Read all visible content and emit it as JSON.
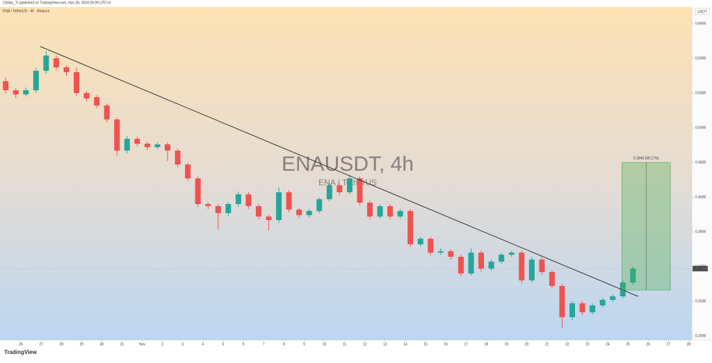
{
  "header": {
    "publisher": "Chillax_Tr published on TradingView.com, Nov 26, 2024 09:39 UTC+3",
    "symbol": "ENA / TetherUS · 4h · Binance",
    "currency": "USDT"
  },
  "footer": {
    "brand": "TradingView"
  },
  "chart_data": {
    "type": "candlestick",
    "title": "ENAUSDT, 4h",
    "subtitle": "ENA / TetherUS",
    "colors": {
      "up": "#26a69a",
      "down": "#ef5350"
    },
    "xlim": [
      -1.031,
      33.16
    ],
    "ylim": [
      0.194,
      0.672
    ],
    "xticks": [
      {
        "value": 0,
        "label": "26"
      },
      {
        "value": 1,
        "label": "27"
      },
      {
        "value": 2,
        "label": "28"
      },
      {
        "value": 3,
        "label": "29"
      },
      {
        "value": 4,
        "label": "30"
      },
      {
        "value": 5,
        "label": "31"
      },
      {
        "value": 6,
        "label": "Nov"
      },
      {
        "value": 7,
        "label": "2"
      },
      {
        "value": 8,
        "label": "3"
      },
      {
        "value": 9,
        "label": "4"
      },
      {
        "value": 10,
        "label": "5"
      },
      {
        "value": 11,
        "label": "6"
      },
      {
        "value": 12,
        "label": "7"
      },
      {
        "value": 13,
        "label": "8"
      },
      {
        "value": 14,
        "label": "9"
      },
      {
        "value": 15,
        "label": "10"
      },
      {
        "value": 16,
        "label": "11"
      },
      {
        "value": 17,
        "label": "12"
      },
      {
        "value": 18,
        "label": "13"
      },
      {
        "value": 19,
        "label": "14"
      },
      {
        "value": 20,
        "label": "15"
      },
      {
        "value": 21,
        "label": "16"
      },
      {
        "value": 22,
        "label": "17"
      },
      {
        "value": 23,
        "label": "18"
      },
      {
        "value": 24,
        "label": "19"
      },
      {
        "value": 25,
        "label": "20"
      },
      {
        "value": 26,
        "label": "21"
      },
      {
        "value": 27,
        "label": "22"
      },
      {
        "value": 28,
        "label": "23"
      },
      {
        "value": 29,
        "label": "24"
      },
      {
        "value": 30,
        "label": "25"
      },
      {
        "value": 31,
        "label": "26"
      },
      {
        "value": 32,
        "label": "27"
      },
      {
        "value": 33,
        "label": "28"
      }
    ],
    "yticks": [
      {
        "value": 0.2,
        "label": "0.2000"
      },
      {
        "value": 0.25,
        "label": "0.2500"
      },
      {
        "value": 0.3,
        "label": "0.3000"
      },
      {
        "value": 0.35,
        "label": "0.3500"
      },
      {
        "value": 0.4,
        "label": "0.4000"
      },
      {
        "value": 0.45,
        "label": "0.4500"
      },
      {
        "value": 0.5,
        "label": "0.5000"
      },
      {
        "value": 0.55,
        "label": "0.5500"
      },
      {
        "value": 0.6,
        "label": "0.6000"
      },
      {
        "value": 0.65,
        "label": "0.6500"
      }
    ],
    "x": [
      -0.75,
      -0.25,
      0.25,
      0.75,
      1.25,
      1.75,
      2.25,
      2.75,
      3.25,
      3.75,
      4.25,
      4.75,
      5.25,
      5.75,
      6.25,
      6.75,
      7.25,
      7.75,
      8.25,
      8.75,
      9.25,
      9.75,
      10.25,
      10.75,
      11.25,
      11.75,
      12.25,
      12.75,
      13.25,
      13.75,
      14.25,
      14.75,
      15.25,
      15.75,
      16.25,
      16.75,
      17.25,
      17.75,
      18.25,
      18.75,
      19.25,
      19.75,
      20.25,
      20.75,
      21.25,
      21.75,
      22.25,
      22.75,
      23.25,
      23.75,
      24.25,
      24.75,
      25.25,
      25.75,
      26.25,
      26.75,
      27.25,
      27.75,
      28.25,
      28.75,
      29.25,
      29.75,
      30.25
    ],
    "open": [
      0.567,
      0.554,
      0.548,
      0.554,
      0.582,
      0.6,
      0.587,
      0.58,
      0.55,
      0.544,
      0.532,
      0.512,
      0.467,
      0.484,
      0.477,
      0.472,
      0.476,
      0.467,
      0.447,
      0.427,
      0.39,
      0.387,
      0.377,
      0.39,
      0.404,
      0.387,
      0.372,
      0.367,
      0.407,
      0.382,
      0.374,
      0.38,
      0.397,
      0.417,
      0.407,
      0.427,
      0.392,
      0.372,
      0.387,
      0.372,
      0.38,
      0.332,
      0.34,
      0.32,
      0.322,
      0.314,
      0.29,
      0.32,
      0.297,
      0.307,
      0.317,
      0.32,
      0.28,
      0.31,
      0.292,
      0.272,
      0.227,
      0.247,
      0.234,
      0.244,
      0.252,
      0.257,
      0.277
    ],
    "high": [
      0.572,
      0.557,
      0.558,
      0.586,
      0.61,
      0.604,
      0.59,
      0.587,
      0.553,
      0.547,
      0.535,
      0.515,
      0.488,
      0.487,
      0.48,
      0.479,
      0.479,
      0.47,
      0.45,
      0.43,
      0.393,
      0.39,
      0.393,
      0.408,
      0.407,
      0.39,
      0.375,
      0.414,
      0.41,
      0.385,
      0.383,
      0.4,
      0.42,
      0.42,
      0.432,
      0.43,
      0.395,
      0.39,
      0.39,
      0.383,
      0.383,
      0.343,
      0.343,
      0.326,
      0.325,
      0.317,
      0.326,
      0.323,
      0.31,
      0.32,
      0.323,
      0.323,
      0.314,
      0.313,
      0.295,
      0.275,
      0.25,
      0.25,
      0.247,
      0.255,
      0.26,
      0.28,
      0.3
    ],
    "low": [
      0.549,
      0.543,
      0.545,
      0.55,
      0.578,
      0.583,
      0.575,
      0.546,
      0.538,
      0.528,
      0.508,
      0.46,
      0.463,
      0.473,
      0.468,
      0.469,
      0.452,
      0.443,
      0.423,
      0.386,
      0.383,
      0.354,
      0.373,
      0.386,
      0.383,
      0.368,
      0.352,
      0.363,
      0.378,
      0.37,
      0.371,
      0.377,
      0.394,
      0.403,
      0.404,
      0.388,
      0.368,
      0.369,
      0.368,
      0.369,
      0.328,
      0.329,
      0.316,
      0.317,
      0.31,
      0.286,
      0.287,
      0.293,
      0.294,
      0.304,
      0.314,
      0.276,
      0.277,
      0.288,
      0.268,
      0.212,
      0.223,
      0.23,
      0.231,
      0.241,
      0.249,
      0.254,
      0.274
    ],
    "close": [
      0.554,
      0.548,
      0.554,
      0.582,
      0.604,
      0.587,
      0.58,
      0.55,
      0.542,
      0.532,
      0.512,
      0.467,
      0.484,
      0.477,
      0.472,
      0.476,
      0.467,
      0.447,
      0.427,
      0.39,
      0.387,
      0.377,
      0.39,
      0.404,
      0.387,
      0.372,
      0.367,
      0.407,
      0.382,
      0.374,
      0.38,
      0.397,
      0.417,
      0.407,
      0.427,
      0.392,
      0.372,
      0.387,
      0.372,
      0.38,
      0.332,
      0.34,
      0.32,
      0.322,
      0.314,
      0.29,
      0.32,
      0.297,
      0.307,
      0.317,
      0.32,
      0.28,
      0.31,
      0.292,
      0.272,
      0.227,
      0.247,
      0.234,
      0.244,
      0.252,
      0.257,
      0.277,
      0.297
    ],
    "trendline": {
      "x": [
        0.96,
        30.5
      ],
      "y": [
        0.617,
        0.257
      ]
    },
    "position": {
      "x": [
        29.7,
        32.1
      ],
      "y": [
        0.266,
        0.45
      ],
      "label": "0.1840 (69.17%)"
    },
    "last_price": 0.297
  }
}
